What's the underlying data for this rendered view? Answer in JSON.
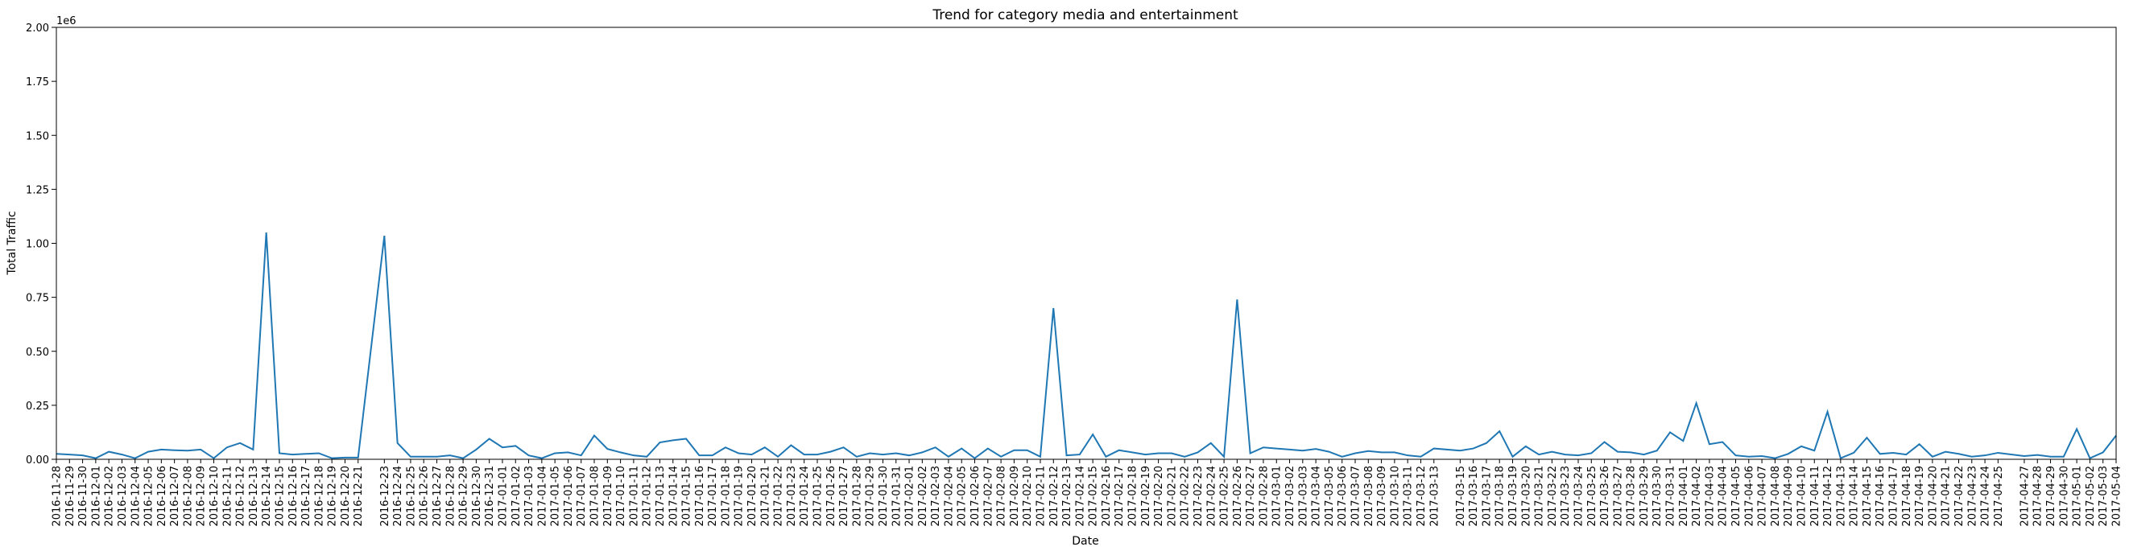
{
  "chart_data": {
    "type": "line",
    "title": "Trend for category media and entertainment",
    "xlabel": "Date",
    "ylabel": "Total Traffic",
    "y_offset_label": "1e6",
    "ylim": [
      0,
      2000000
    ],
    "yticks": [
      0,
      250000,
      500000,
      750000,
      1000000,
      1250000,
      1500000,
      1750000,
      2000000
    ],
    "ytick_labels": [
      "0.00",
      "0.25",
      "0.50",
      "0.75",
      "1.00",
      "1.25",
      "1.50",
      "1.75",
      "2.00"
    ],
    "xlim": [
      "2016-11-28",
      "2017-05-04"
    ],
    "grid": false,
    "line_color": "#1f77b4",
    "series": [
      {
        "x": [
          "2016-11-28",
          "2016-11-29",
          "2016-11-30",
          "2016-12-01",
          "2016-12-02",
          "2016-12-03",
          "2016-12-04",
          "2016-12-05",
          "2016-12-06",
          "2016-12-07",
          "2016-12-08",
          "2016-12-09",
          "2016-12-10",
          "2016-12-11",
          "2016-12-12",
          "2016-12-13",
          "2016-12-14",
          "2016-12-15",
          "2016-12-16",
          "2016-12-17",
          "2016-12-18",
          "2016-12-19",
          "2016-12-20",
          "2016-12-21",
          "2016-12-23",
          "2016-12-24",
          "2016-12-25",
          "2016-12-26",
          "2016-12-27",
          "2016-12-28",
          "2016-12-29",
          "2016-12-30",
          "2016-12-31",
          "2017-01-01",
          "2017-01-02",
          "2017-01-03",
          "2017-01-04",
          "2017-01-05",
          "2017-01-06",
          "2017-01-07",
          "2017-01-08",
          "2017-01-09",
          "2017-01-10",
          "2017-01-11",
          "2017-01-12",
          "2017-01-13",
          "2017-01-14",
          "2017-01-15",
          "2017-01-16",
          "2017-01-17",
          "2017-01-18",
          "2017-01-19",
          "2017-01-20",
          "2017-01-21",
          "2017-01-22",
          "2017-01-23",
          "2017-01-24",
          "2017-01-25",
          "2017-01-26",
          "2017-01-27",
          "2017-01-28",
          "2017-01-29",
          "2017-01-30",
          "2017-01-31",
          "2017-02-01",
          "2017-02-02",
          "2017-02-03",
          "2017-02-04",
          "2017-02-05",
          "2017-02-06",
          "2017-02-07",
          "2017-02-08",
          "2017-02-09",
          "2017-02-10",
          "2017-02-11",
          "2017-02-12",
          "2017-02-13",
          "2017-02-14",
          "2017-02-15",
          "2017-02-16",
          "2017-02-17",
          "2017-02-18",
          "2017-02-19",
          "2017-02-20",
          "2017-02-21",
          "2017-02-22",
          "2017-02-23",
          "2017-02-24",
          "2017-02-25",
          "2017-02-26",
          "2017-02-27",
          "2017-02-28",
          "2017-03-01",
          "2017-03-02",
          "2017-03-03",
          "2017-03-04",
          "2017-03-05",
          "2017-03-06",
          "2017-03-07",
          "2017-03-08",
          "2017-03-09",
          "2017-03-10",
          "2017-03-11",
          "2017-03-12",
          "2017-03-13",
          "2017-03-15",
          "2017-03-16",
          "2017-03-17",
          "2017-03-18",
          "2017-03-19",
          "2017-03-20",
          "2017-03-21",
          "2017-03-22",
          "2017-03-23",
          "2017-03-24",
          "2017-03-25",
          "2017-03-26",
          "2017-03-27",
          "2017-03-28",
          "2017-03-29",
          "2017-03-30",
          "2017-03-31",
          "2017-04-01",
          "2017-04-02",
          "2017-04-03",
          "2017-04-04",
          "2017-04-05",
          "2017-04-06",
          "2017-04-07",
          "2017-04-08",
          "2017-04-09",
          "2017-04-10",
          "2017-04-11",
          "2017-04-12",
          "2017-04-13",
          "2017-04-14",
          "2017-04-15",
          "2017-04-16",
          "2017-04-17",
          "2017-04-18",
          "2017-04-19",
          "2017-04-20",
          "2017-04-21",
          "2017-04-22",
          "2017-04-23",
          "2017-04-24",
          "2017-04-25",
          "2017-04-27",
          "2017-04-28",
          "2017-04-29",
          "2017-04-30",
          "2017-05-01",
          "2017-05-02",
          "2017-05-03",
          "2017-05-04"
        ],
        "y": [
          25000,
          22000,
          18000,
          5000,
          35000,
          22000,
          5000,
          35000,
          45000,
          42000,
          40000,
          45000,
          5000,
          55000,
          75000,
          45000,
          1050000,
          28000,
          22000,
          25000,
          28000,
          5000,
          8000,
          8000,
          1035000,
          75000,
          12000,
          12000,
          12000,
          18000,
          5000,
          45000,
          95000,
          55000,
          62000,
          18000,
          5000,
          28000,
          32000,
          18000,
          110000,
          48000,
          32000,
          18000,
          12000,
          78000,
          88000,
          95000,
          18000,
          18000,
          55000,
          28000,
          22000,
          55000,
          12000,
          65000,
          22000,
          22000,
          35000,
          55000,
          12000,
          28000,
          22000,
          28000,
          18000,
          32000,
          55000,
          12000,
          50000,
          5000,
          50000,
          12000,
          42000,
          42000,
          12000,
          700000,
          18000,
          22000,
          115000,
          12000,
          42000,
          32000,
          22000,
          28000,
          28000,
          12000,
          32000,
          75000,
          12000,
          740000,
          28000,
          55000,
          50000,
          45000,
          40000,
          48000,
          35000,
          12000,
          28000,
          38000,
          32000,
          32000,
          18000,
          12000,
          50000,
          40000,
          50000,
          75000,
          130000,
          12000,
          60000,
          22000,
          35000,
          22000,
          18000,
          28000,
          80000,
          35000,
          32000,
          22000,
          40000,
          125000,
          85000,
          260000,
          70000,
          80000,
          18000,
          12000,
          15000,
          5000,
          25000,
          60000,
          40000,
          220000,
          5000,
          30000,
          100000,
          25000,
          30000,
          22000,
          70000,
          12000,
          35000,
          25000,
          12000,
          18000,
          30000,
          15000,
          20000,
          12000,
          12000,
          140000,
          5000,
          32000,
          110000
        ]
      }
    ]
  }
}
